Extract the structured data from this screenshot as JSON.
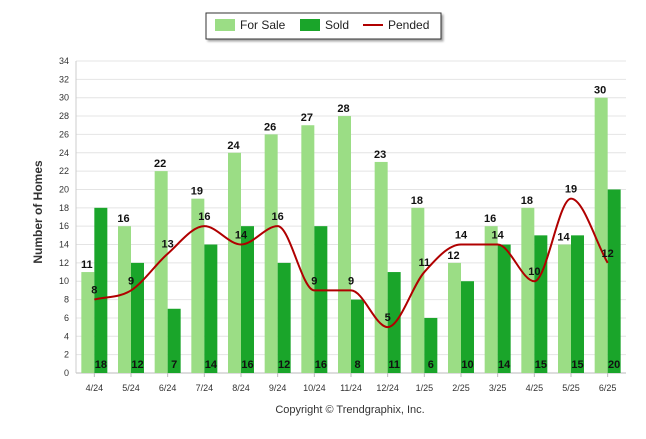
{
  "chart_data": {
    "type": "bar",
    "categories": [
      "4/24",
      "5/24",
      "6/24",
      "7/24",
      "8/24",
      "9/24",
      "10/24",
      "11/24",
      "12/24",
      "1/25",
      "2/25",
      "3/25",
      "4/25",
      "5/25",
      "6/25"
    ],
    "series": [
      {
        "name": "For Sale",
        "kind": "bar",
        "color": "#9bdd85",
        "values": [
          11,
          16,
          22,
          19,
          24,
          26,
          27,
          28,
          23,
          18,
          12,
          16,
          18,
          14,
          30
        ]
      },
      {
        "name": "Sold",
        "kind": "bar",
        "color": "#1aa52a",
        "values": [
          18,
          12,
          7,
          14,
          16,
          12,
          16,
          8,
          11,
          6,
          10,
          14,
          15,
          15,
          20
        ]
      },
      {
        "name": "Pended",
        "kind": "line",
        "color": "#b00000",
        "values": [
          8,
          9,
          13,
          16,
          14,
          16,
          9,
          9,
          5,
          11,
          14,
          14,
          10,
          19,
          12
        ]
      }
    ],
    "ylabel": "Number of Homes",
    "xlabel": "",
    "ylim": [
      0,
      34
    ],
    "yticks": [
      0,
      2,
      4,
      6,
      8,
      10,
      12,
      14,
      16,
      18,
      20,
      22,
      24,
      26,
      28,
      30,
      32,
      34
    ],
    "grid": true,
    "legend_position": "top-center",
    "credit": "Copyright © Trendgraphix, Inc."
  }
}
